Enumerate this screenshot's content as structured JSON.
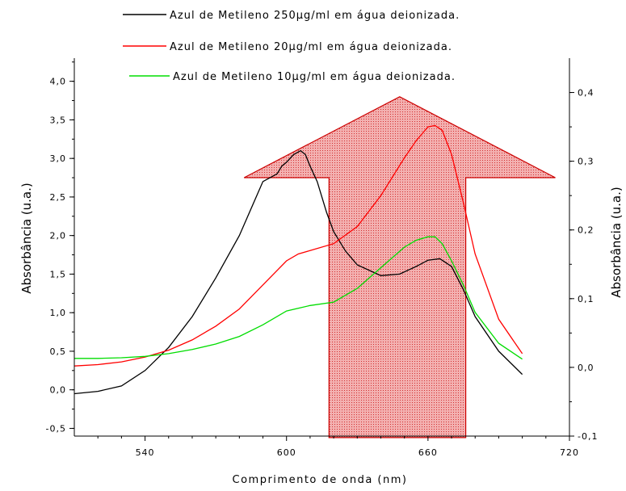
{
  "chart_data": {
    "type": "line",
    "xlabel": "Comprimento de onda (nm)",
    "ylabel_left": "Absorbância (u.a.)",
    "ylabel_right": "Absorbância (u.a.)",
    "xlim": [
      510,
      720
    ],
    "ylim_left": [
      -0.6,
      4.3
    ],
    "ylim_right": [
      -0.1,
      0.45
    ],
    "x_ticks": [
      "540",
      "600",
      "660",
      "720"
    ],
    "y_left_ticks": [
      "-0,5",
      "0,0",
      "0,5",
      "1,0",
      "1,5",
      "2,0",
      "2,5",
      "3,0",
      "3,5",
      "4,0"
    ],
    "y_right_ticks": [
      "-0,1",
      "0,0",
      "0,1",
      "0,2",
      "0,3",
      "0,4"
    ],
    "legend_position": "top",
    "series": [
      {
        "name": "Azul de Metileno 250µg/ml em água deionizada.",
        "color": "#000000",
        "axis": "left",
        "x": [
          510,
          520,
          530,
          540,
          550,
          560,
          570,
          580,
          590,
          596,
          598,
          600,
          603,
          606,
          608,
          610,
          613,
          617,
          620,
          625,
          630,
          640,
          648,
          655,
          660,
          665,
          670,
          675,
          680,
          690,
          700
        ],
        "y": [
          -0.05,
          -0.02,
          0.05,
          0.25,
          0.55,
          0.95,
          1.45,
          2.0,
          2.7,
          2.8,
          2.9,
          2.95,
          3.05,
          3.1,
          3.05,
          2.9,
          2.7,
          2.3,
          2.05,
          1.8,
          1.62,
          1.48,
          1.5,
          1.6,
          1.68,
          1.7,
          1.6,
          1.3,
          0.95,
          0.5,
          0.2
        ]
      },
      {
        "name": "Azul de Metileno 20µg/ml em água deionizada.",
        "color": "#ff0000",
        "axis": "right",
        "x": [
          510,
          520,
          530,
          540,
          550,
          560,
          570,
          580,
          590,
          600,
          605,
          610,
          620,
          630,
          640,
          650,
          655,
          660,
          663,
          666,
          670,
          675,
          680,
          690,
          700
        ],
        "y": [
          0.002,
          0.004,
          0.008,
          0.015,
          0.025,
          0.04,
          0.06,
          0.085,
          0.12,
          0.155,
          0.165,
          0.17,
          0.18,
          0.205,
          0.25,
          0.305,
          0.33,
          0.35,
          0.352,
          0.345,
          0.31,
          0.24,
          0.165,
          0.07,
          0.02
        ]
      },
      {
        "name": "Azul de Metileno 10µg/ml em água deionizada.",
        "color": "#00dd00",
        "axis": "right",
        "x": [
          510,
          520,
          530,
          540,
          550,
          560,
          570,
          580,
          590,
          600,
          610,
          620,
          630,
          640,
          650,
          655,
          660,
          663,
          666,
          670,
          675,
          680,
          690,
          700
        ],
        "y": [
          0.013,
          0.013,
          0.014,
          0.016,
          0.02,
          0.026,
          0.034,
          0.045,
          0.062,
          0.082,
          0.09,
          0.095,
          0.115,
          0.145,
          0.175,
          0.185,
          0.19,
          0.19,
          0.18,
          0.155,
          0.12,
          0.08,
          0.035,
          0.012
        ]
      }
    ],
    "annotation": {
      "shape": "up-arrow",
      "fill": "#e97070",
      "stroke": "#cc0000",
      "x_shaft": [
        618,
        676
      ],
      "x_head": [
        582,
        714
      ],
      "y_head_base": 2.75,
      "y_tip": 3.8,
      "y_bottom": -0.62,
      "tip_x": 648
    }
  }
}
